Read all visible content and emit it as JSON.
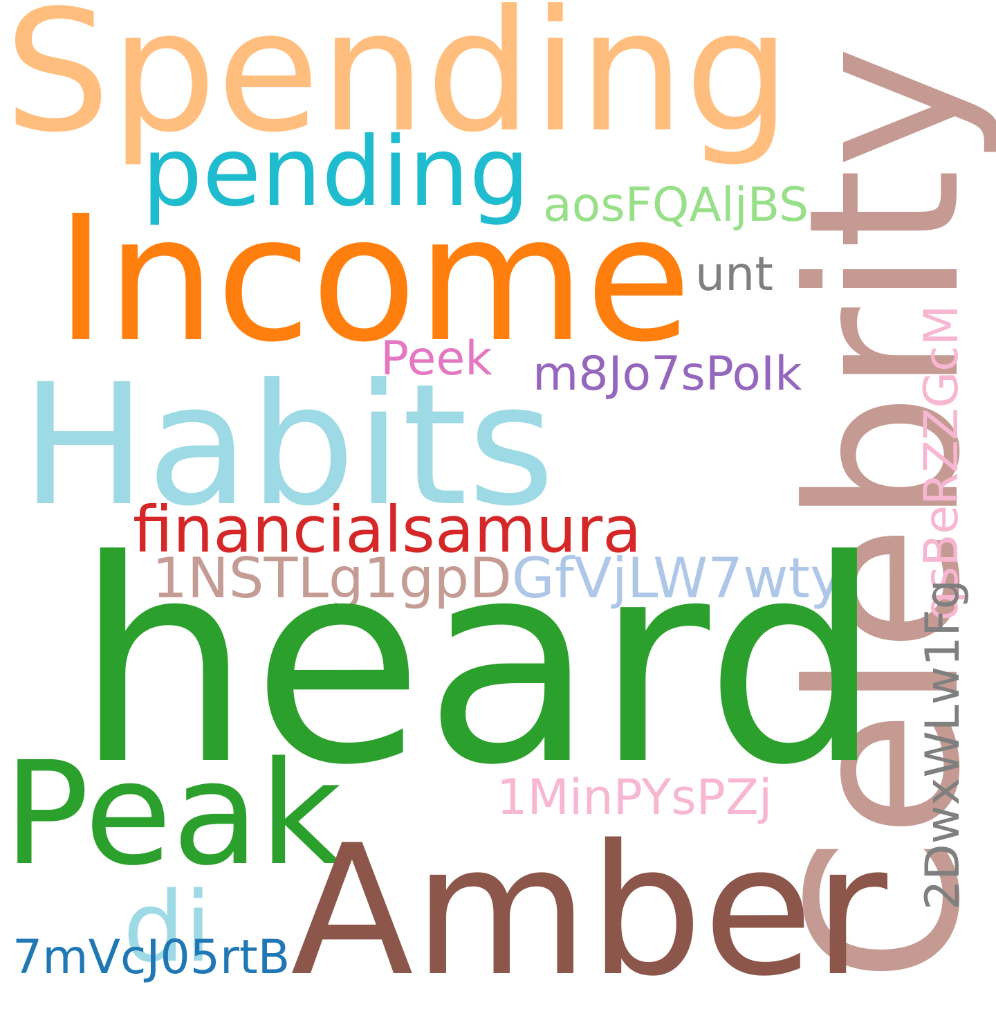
{
  "words": {
    "spending": {
      "text": "Spending",
      "color": "#FFBE7D"
    },
    "celebrity": {
      "text": "Celebrity",
      "color": "#C49A92"
    },
    "pending": {
      "text": "pending",
      "color": "#1FBCD0"
    },
    "aos": {
      "text": "aosFQAljBS",
      "color": "#98DF8A"
    },
    "income": {
      "text": "Income",
      "color": "#FF7F0E"
    },
    "unt": {
      "text": "unt",
      "color": "#7F7F7F"
    },
    "peek": {
      "text": "Peek",
      "color": "#E377C2"
    },
    "m8": {
      "text": "m8Jo7sPoIk",
      "color": "#9467BD"
    },
    "qsb": {
      "text": "qsBeRZZGcM",
      "color": "#F7B6D2"
    },
    "habits": {
      "text": "Habits",
      "color": "#9EDAE5"
    },
    "financial": {
      "text": "financialsamura",
      "color": "#D62728"
    },
    "onenst_a": {
      "text": "1NSTLg1gpD",
      "color": "#C49C94"
    },
    "onenst_b": {
      "text": "GfVjLW7wty",
      "color": "#AEC7E8"
    },
    "heard": {
      "text": "heard",
      "color": "#2CA02C"
    },
    "twodwx": {
      "text": "2DwxWLw1Fg",
      "color": "#7F7F7F"
    },
    "peak": {
      "text": "Peak",
      "color": "#2CA02C"
    },
    "onemin": {
      "text": "1MinPYsPZj",
      "color": "#F7B6D2"
    },
    "amber": {
      "text": "Amber",
      "color": "#8C564B"
    },
    "di": {
      "text": "di",
      "color": "#9EDAE5"
    },
    "sevenmv": {
      "text": "7mVcJ05rtB",
      "color": "#1F77B4"
    }
  }
}
